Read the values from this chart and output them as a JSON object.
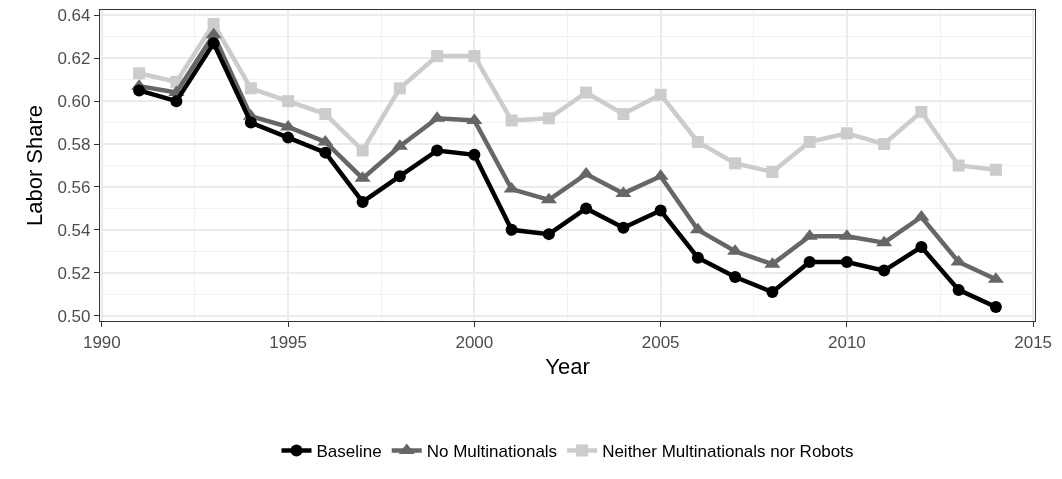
{
  "chart_data": {
    "type": "line",
    "xlabel": "Year",
    "ylabel": "Labor Share",
    "x": [
      1991,
      1992,
      1993,
      1994,
      1995,
      1996,
      1997,
      1998,
      1999,
      2000,
      2001,
      2002,
      2003,
      2004,
      2005,
      2006,
      2007,
      2008,
      2009,
      2010,
      2011,
      2012,
      2013,
      2014
    ],
    "series": [
      {
        "name": "Baseline",
        "color": "#000000",
        "marker": "circle",
        "values": [
          0.605,
          0.6,
          0.627,
          0.59,
          0.583,
          0.576,
          0.553,
          0.565,
          0.577,
          0.575,
          0.54,
          0.538,
          0.55,
          0.541,
          0.549,
          0.527,
          0.518,
          0.511,
          0.525,
          0.525,
          0.521,
          0.532,
          0.512,
          0.504
        ]
      },
      {
        "name": "No Multinationals",
        "color": "#666666",
        "marker": "triangle",
        "values": [
          0.607,
          0.604,
          0.631,
          0.593,
          0.588,
          0.581,
          0.564,
          0.579,
          0.592,
          0.591,
          0.559,
          0.554,
          0.566,
          0.557,
          0.565,
          0.54,
          0.53,
          0.524,
          0.537,
          0.537,
          0.534,
          0.546,
          0.525,
          0.517
        ]
      },
      {
        "name": "Neither Multinationals nor Robots",
        "color": "#cccccc",
        "marker": "square",
        "values": [
          0.613,
          0.609,
          0.636,
          0.606,
          0.6,
          0.594,
          0.577,
          0.606,
          0.621,
          0.621,
          0.591,
          0.592,
          0.604,
          0.594,
          0.603,
          0.581,
          0.571,
          0.567,
          0.581,
          0.585,
          0.58,
          0.595,
          0.57,
          0.568
        ]
      }
    ],
    "xlim": [
      1989.95,
      2015.05
    ],
    "xticks": [
      1990,
      1995,
      2000,
      2005,
      2010,
      2015
    ],
    "ylim": [
      0.4975,
      0.6425
    ],
    "yticks": [
      {
        "value": 0.5,
        "label": "0.50"
      },
      {
        "value": 0.52,
        "label": "0.52"
      },
      {
        "value": 0.54,
        "label": "0.54"
      },
      {
        "value": 0.56,
        "label": "0.56"
      },
      {
        "value": 0.58,
        "label": "0.58"
      },
      {
        "value": 0.6,
        "label": "0.60"
      },
      {
        "value": 0.62,
        "label": "0.62"
      },
      {
        "value": 0.64,
        "label": "0.64"
      }
    ],
    "grid": true,
    "legend": "bottom",
    "line_style": "solid"
  }
}
